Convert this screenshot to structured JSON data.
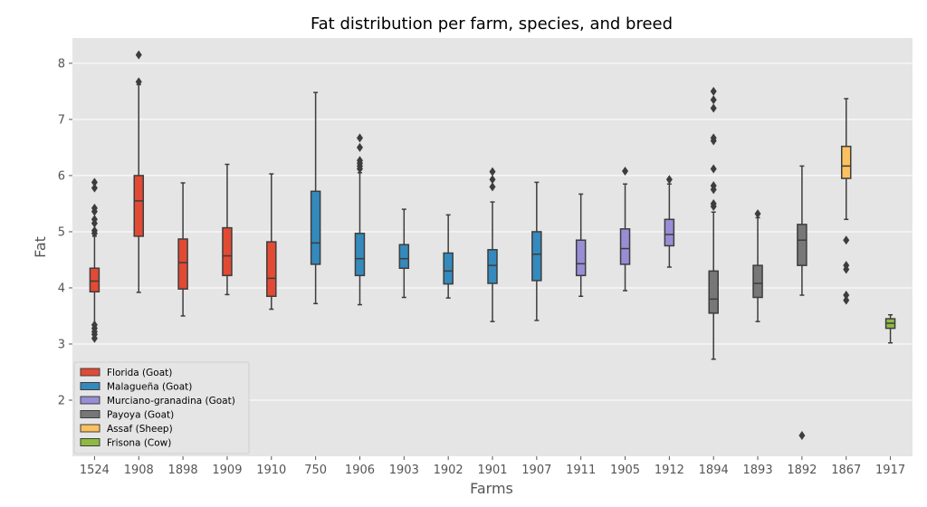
{
  "chart_data": {
    "type": "box",
    "title": "Fat distribution per farm, species, and breed",
    "xlabel": "Farms",
    "ylabel": "Fat",
    "ylim": [
      1.0,
      8.45
    ],
    "yticks": [
      2,
      3,
      4,
      5,
      6,
      7,
      8
    ],
    "grid": true,
    "legend_placement": "lower-left",
    "legend": [
      {
        "label": "Florida (Goat)",
        "color": "#E24A33"
      },
      {
        "label": "Malagueña (Goat)",
        "color": "#348ABD"
      },
      {
        "label": "Murciano-granadina (Goat)",
        "color": "#988ED5"
      },
      {
        "label": "Payoya (Goat)",
        "color": "#777777"
      },
      {
        "label": "Assaf (Sheep)",
        "color": "#FBC15E"
      },
      {
        "label": "Frisona (Cow)",
        "color": "#8EBA42"
      }
    ],
    "categories": [
      "1524",
      "1908",
      "1898",
      "1909",
      "1910",
      "750",
      "1906",
      "1903",
      "1902",
      "1901",
      "1907",
      "1911",
      "1905",
      "1912",
      "1894",
      "1893",
      "1892",
      "1867",
      "1917"
    ],
    "boxes": [
      {
        "farm": "1524",
        "group": 0,
        "whislo": 3.2,
        "q1": 3.93,
        "med": 4.12,
        "q3": 4.35,
        "whishi": 4.92,
        "fliers": [
          5.88,
          5.78,
          5.42,
          5.36,
          5.22,
          5.15,
          5.02,
          4.97,
          3.34,
          3.28,
          3.22,
          3.17,
          3.1
        ]
      },
      {
        "farm": "1908",
        "group": 0,
        "whislo": 3.92,
        "q1": 4.92,
        "med": 5.55,
        "q3": 6.0,
        "whishi": 7.62,
        "fliers": [
          8.15,
          7.67
        ]
      },
      {
        "farm": "1898",
        "group": 0,
        "whislo": 3.5,
        "q1": 3.98,
        "med": 4.45,
        "q3": 4.87,
        "whishi": 5.87,
        "fliers": []
      },
      {
        "farm": "1909",
        "group": 0,
        "whislo": 3.88,
        "q1": 4.22,
        "med": 4.57,
        "q3": 5.07,
        "whishi": 6.2,
        "fliers": []
      },
      {
        "farm": "1910",
        "group": 0,
        "whislo": 3.62,
        "q1": 3.85,
        "med": 4.17,
        "q3": 4.82,
        "whishi": 6.03,
        "fliers": []
      },
      {
        "farm": "750",
        "group": 1,
        "whislo": 3.72,
        "q1": 4.42,
        "med": 4.8,
        "q3": 5.72,
        "whishi": 7.48,
        "fliers": []
      },
      {
        "farm": "1906",
        "group": 1,
        "whislo": 3.7,
        "q1": 4.22,
        "med": 4.52,
        "q3": 4.97,
        "whishi": 6.05,
        "fliers": [
          6.67,
          6.5,
          6.27,
          6.22,
          6.17,
          6.12
        ]
      },
      {
        "farm": "1903",
        "group": 1,
        "whislo": 3.83,
        "q1": 4.35,
        "med": 4.52,
        "q3": 4.77,
        "whishi": 5.4,
        "fliers": []
      },
      {
        "farm": "1902",
        "group": 1,
        "whislo": 3.82,
        "q1": 4.07,
        "med": 4.3,
        "q3": 4.62,
        "whishi": 5.3,
        "fliers": []
      },
      {
        "farm": "1901",
        "group": 1,
        "whislo": 3.4,
        "q1": 4.08,
        "med": 4.4,
        "q3": 4.68,
        "whishi": 5.53,
        "fliers": [
          6.07,
          5.93,
          5.8
        ]
      },
      {
        "farm": "1907",
        "group": 1,
        "whislo": 3.42,
        "q1": 4.13,
        "med": 4.6,
        "q3": 5.0,
        "whishi": 5.88,
        "fliers": []
      },
      {
        "farm": "1911",
        "group": 2,
        "whislo": 3.85,
        "q1": 4.22,
        "med": 4.43,
        "q3": 4.85,
        "whishi": 5.67,
        "fliers": []
      },
      {
        "farm": "1905",
        "group": 2,
        "whislo": 3.95,
        "q1": 4.42,
        "med": 4.7,
        "q3": 5.05,
        "whishi": 5.85,
        "fliers": [
          6.08
        ]
      },
      {
        "farm": "1912",
        "group": 2,
        "whislo": 4.37,
        "q1": 4.75,
        "med": 4.95,
        "q3": 5.22,
        "whishi": 5.85,
        "fliers": [
          5.93
        ]
      },
      {
        "farm": "1894",
        "group": 3,
        "whislo": 2.73,
        "q1": 3.55,
        "med": 3.8,
        "q3": 4.3,
        "whishi": 5.35,
        "fliers": [
          7.5,
          7.35,
          7.2,
          6.67,
          6.62,
          6.12,
          5.82,
          5.75,
          5.5,
          5.45
        ]
      },
      {
        "farm": "1893",
        "group": 3,
        "whislo": 3.4,
        "q1": 3.83,
        "med": 4.08,
        "q3": 4.4,
        "whishi": 5.25,
        "fliers": [
          5.32
        ]
      },
      {
        "farm": "1892",
        "group": 3,
        "whislo": 3.87,
        "q1": 4.4,
        "med": 4.85,
        "q3": 5.13,
        "whishi": 6.17,
        "fliers": [
          1.37
        ]
      },
      {
        "farm": "1867",
        "group": 4,
        "whislo": 5.22,
        "q1": 5.95,
        "med": 6.17,
        "q3": 6.52,
        "whishi": 7.37,
        "fliers": [
          4.85,
          4.4,
          4.33,
          3.87,
          3.78
        ]
      },
      {
        "farm": "1917",
        "group": 5,
        "whislo": 3.02,
        "q1": 3.28,
        "med": 3.37,
        "q3": 3.45,
        "whishi": 3.52,
        "fliers": []
      }
    ]
  }
}
